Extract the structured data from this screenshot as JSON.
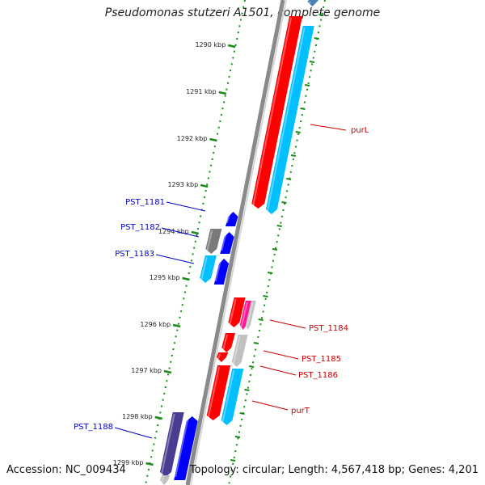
{
  "title": "Pseudomonas stutzeri A1501, complete genome",
  "footer": {
    "accession": "Accession: NC_009434",
    "topology": "Topology: circular; Length: 4,567,418 bp; Genes: 4,201"
  },
  "colors": {
    "backbone": "#8a8a8a",
    "tick": "#1a8a1a",
    "forward_label": "#0000c8",
    "reverse_label": "#c80000",
    "red": "#ff0000",
    "cyan": "#00bfff",
    "blue": "#0000ff",
    "gray": "#7a7a7a",
    "lightgray": "#c0c0c0",
    "magenta": "#ff1493",
    "purple": "#4a3c90",
    "steel": "#4682b4"
  },
  "scale_labels": [
    "1290 kbp",
    "1291 kbp",
    "1292 kbp",
    "1293 kbp",
    "1294 kbp",
    "1295 kbp",
    "1296 kbp",
    "1297 kbp",
    "1298 kbp",
    "1299 kbp"
  ],
  "gene_labels": [
    {
      "text": "purL",
      "strand": "reverse"
    },
    {
      "text": "PST_1181",
      "strand": "forward"
    },
    {
      "text": "PST_1182",
      "strand": "forward"
    },
    {
      "text": "PST_1183",
      "strand": "forward"
    },
    {
      "text": "PST_1184",
      "strand": "reverse"
    },
    {
      "text": "PST_1185",
      "strand": "reverse"
    },
    {
      "text": "PST_1186",
      "strand": "reverse"
    },
    {
      "text": "purT",
      "strand": "reverse"
    },
    {
      "text": "PST_1188",
      "strand": "forward"
    }
  ]
}
